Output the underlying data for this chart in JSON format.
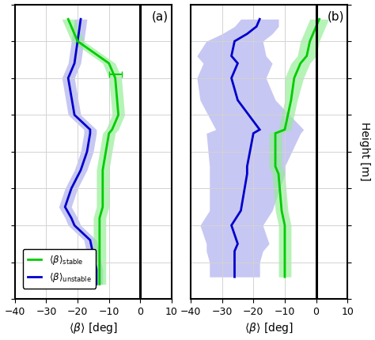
{
  "panel_a": {
    "heights": [
      120,
      140,
      160,
      180,
      200,
      210,
      225,
      250,
      275,
      300,
      325,
      330,
      350,
      400,
      420,
      450,
      480
    ],
    "green_mean": [
      -13,
      -13,
      -13,
      -13,
      -13,
      -13,
      -12,
      -12,
      -12,
      -11,
      -10,
      -9,
      -7,
      -8,
      -10,
      -20,
      -23
    ],
    "green_lo": [
      -15,
      -15,
      -15,
      -15,
      -15,
      -15,
      -14,
      -14,
      -14,
      -13,
      -12,
      -11,
      -9,
      -10,
      -12,
      -22,
      -25
    ],
    "green_hi": [
      -11,
      -11,
      -11,
      -11,
      -11,
      -11,
      -10,
      -10,
      -10,
      -9,
      -8,
      -7,
      -5,
      -6,
      -8,
      -18,
      -21
    ],
    "blue_mean": [
      -14,
      -14,
      -15,
      -16,
      -21,
      -22,
      -24,
      -22,
      -19,
      -17,
      -16,
      -16,
      -21,
      -23,
      -21,
      -20,
      -19
    ],
    "blue_lo": [
      -16,
      -16,
      -17,
      -18,
      -23,
      -24,
      -26,
      -24,
      -21,
      -19,
      -18,
      -18,
      -23,
      -25,
      -23,
      -22,
      -21
    ],
    "blue_hi": [
      -12,
      -12,
      -13,
      -14,
      -19,
      -20,
      -22,
      -20,
      -17,
      -15,
      -14,
      -14,
      -19,
      -21,
      -19,
      -18,
      -17
    ],
    "eb_x": -8,
    "eb_y": 405,
    "eb_lo": -10,
    "eb_hi": -6
  },
  "panel_b": {
    "heights": [
      130,
      150,
      165,
      175,
      200,
      220,
      270,
      280,
      325,
      330,
      370,
      400,
      420,
      430,
      450,
      460,
      470,
      480
    ],
    "green_mean": [
      -10,
      -10,
      -10,
      -10,
      -10,
      -11,
      -12,
      -13,
      -13,
      -10,
      -8,
      -7,
      -5,
      -3,
      -2,
      -1,
      0,
      1
    ],
    "green_lo": [
      -12,
      -12,
      -12,
      -12,
      -12,
      -13,
      -14,
      -15,
      -15,
      -12,
      -10,
      -10,
      -8,
      -6,
      -5,
      -4,
      -3,
      -2
    ],
    "green_hi": [
      -8,
      -8,
      -8,
      -8,
      -8,
      -9,
      -10,
      -11,
      -11,
      -8,
      -6,
      -4,
      -2,
      0,
      1,
      2,
      3,
      4
    ],
    "blue_mean": [
      -26,
      -26,
      -26,
      -25,
      -27,
      -24,
      -22,
      -22,
      -20,
      -18,
      -25,
      -27,
      -25,
      -27,
      -26,
      -22,
      -19,
      -18
    ],
    "blue_lo": [
      -34,
      -34,
      -35,
      -35,
      -37,
      -34,
      -34,
      -34,
      -35,
      -32,
      -37,
      -38,
      -36,
      -38,
      -35,
      -30,
      -26,
      -24
    ],
    "blue_hi": [
      -18,
      -18,
      -17,
      -15,
      -17,
      -14,
      -10,
      -10,
      -5,
      -4,
      -13,
      -16,
      -14,
      -16,
      -17,
      -14,
      -12,
      -12
    ]
  },
  "ylim": [
    100,
    500
  ],
  "xlim": [
    -40,
    10
  ],
  "yticks": [
    100,
    150,
    200,
    250,
    300,
    350,
    400,
    450,
    500
  ],
  "xticks": [
    -40,
    -30,
    -20,
    -10,
    0,
    10
  ],
  "green_color": "#00cc00",
  "green_fill_color": "#90ee90",
  "blue_color": "#0000cc",
  "blue_fill_color": "#aaaaee",
  "xlabel": "$\\langle \\beta \\rangle$ [deg]",
  "ylabel": "Height [m]",
  "label_stable": "$\\langle\\beta\\rangle_{\\mathrm{stable}}$",
  "label_unstable": "$\\langle\\beta\\rangle_{\\mathrm{unstable}}$"
}
